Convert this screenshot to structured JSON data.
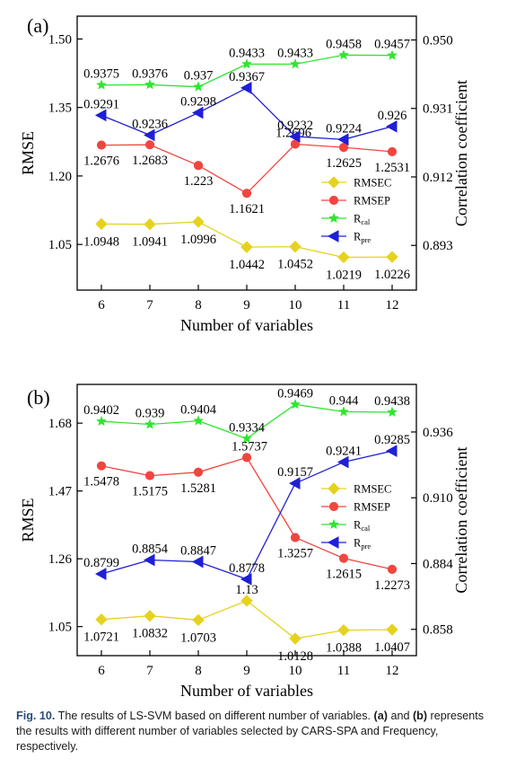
{
  "chart_data": [
    {
      "panel_label": "(a)",
      "type": "line",
      "xlabel": "Number of variables",
      "ylabel": "RMSE",
      "y2label": "Correlation coefficient",
      "x": [
        6,
        7,
        8,
        9,
        10,
        11,
        12
      ],
      "xticks": [
        "6",
        "7",
        "8",
        "9",
        "10",
        "11",
        "12"
      ],
      "xlim": [
        5.5,
        12.5
      ],
      "ylim": [
        0.95,
        1.55
      ],
      "yticks": [
        "1.05",
        "1.20",
        "1.35",
        "1.50"
      ],
      "y2lim": [
        0.8806,
        0.9566
      ],
      "y2ticks": [
        "0.893",
        "0.912",
        "0.931",
        "0.950"
      ],
      "legend_position": "right",
      "series": [
        {
          "key": "rmsec",
          "name": "RMSEC",
          "axis": "left",
          "color": "#e6d21e",
          "marker": "diamond",
          "values": [
            1.0948,
            1.0941,
            1.0996,
            1.0442,
            1.0452,
            1.0219,
            1.0226
          ],
          "labels": [
            "1.0948",
            "1.0941",
            "1.0996",
            "1.0442",
            "1.0452",
            "1.0219",
            "1.0226"
          ]
        },
        {
          "key": "rmsep",
          "name": "RMSEP",
          "axis": "left",
          "color": "#f0463f",
          "marker": "circle",
          "values": [
            1.2676,
            1.2683,
            1.223,
            1.1621,
            1.2696,
            1.2625,
            1.2531
          ],
          "labels": [
            "1.2676",
            "1.2683",
            "1.223",
            "1.1621",
            "1.2696",
            "1.2625",
            "1.2531"
          ]
        },
        {
          "key": "rcal",
          "name": "R",
          "sub": "cal",
          "axis": "right",
          "color": "#2ee62e",
          "marker": "star",
          "values": [
            0.9375,
            0.9376,
            0.937,
            0.9433,
            0.9433,
            0.9458,
            0.9457
          ],
          "labels": [
            "0.9375",
            "0.9376",
            "0.937",
            "0.9433",
            "0.9433",
            "0.9458",
            "0.9457"
          ]
        },
        {
          "key": "rpre",
          "name": "R",
          "sub": "pre",
          "axis": "right",
          "color": "#1f1fd6",
          "marker": "triangle-left",
          "values": [
            0.9291,
            0.9236,
            0.9298,
            0.9367,
            0.9232,
            0.9224,
            0.926
          ],
          "labels": [
            "0.9291",
            "0.9236",
            "0.9298",
            "0.9367",
            "0.9232",
            "0.9224",
            "0.926"
          ]
        }
      ]
    },
    {
      "panel_label": "(b)",
      "type": "line",
      "xlabel": "Number of variables",
      "ylabel": "RMSE",
      "y2label": "Correlation coefficient",
      "x": [
        6,
        7,
        8,
        9,
        10,
        11,
        12
      ],
      "xticks": [
        "6",
        "7",
        "8",
        "9",
        "10",
        "11",
        "12"
      ],
      "xlim": [
        5.5,
        12.5
      ],
      "ylim": [
        0.96,
        1.8
      ],
      "yticks": [
        "1.05",
        "1.26",
        "1.47",
        "1.68"
      ],
      "y2lim": [
        0.8476,
        0.9548
      ],
      "y2ticks": [
        "0.858",
        "0.884",
        "0.910",
        "0.936"
      ],
      "legend_position": "right",
      "series": [
        {
          "key": "rmsec",
          "name": "RMSEC",
          "axis": "left",
          "color": "#e6d21e",
          "marker": "diamond",
          "values": [
            1.0721,
            1.0832,
            1.0703,
            1.13,
            1.0128,
            1.0388,
            1.0407
          ],
          "labels": [
            "1.0721",
            "1.0832",
            "1.0703",
            "1.13",
            "1.0128",
            "1.0388",
            "1.0407"
          ]
        },
        {
          "key": "rmsep",
          "name": "RMSEP",
          "axis": "left",
          "color": "#f0463f",
          "marker": "circle",
          "values": [
            1.5478,
            1.5175,
            1.5281,
            1.5737,
            1.3257,
            1.2615,
            1.2273
          ],
          "labels": [
            "1.5478",
            "1.5175",
            "1.5281",
            "1.5737",
            "1.3257",
            "1.2615",
            "1.2273"
          ]
        },
        {
          "key": "rcal",
          "name": "R",
          "sub": "cal",
          "axis": "right",
          "color": "#2ee62e",
          "marker": "star",
          "values": [
            0.9402,
            0.939,
            0.9404,
            0.9334,
            0.9469,
            0.944,
            0.9438
          ],
          "labels": [
            "0.9402",
            "0.939",
            "0.9404",
            "0.9334",
            "0.9469",
            "0.944",
            "0.9438"
          ]
        },
        {
          "key": "rpre",
          "name": "R",
          "sub": "pre",
          "axis": "right",
          "color": "#1f1fd6",
          "marker": "triangle-left",
          "values": [
            0.8799,
            0.8854,
            0.8847,
            0.8778,
            0.9157,
            0.9241,
            0.9285
          ],
          "labels": [
            "0.8799",
            "0.8854",
            "0.8847",
            "0.8778",
            "0.9157",
            "0.9241",
            "0.9285"
          ]
        }
      ]
    }
  ],
  "caption": {
    "label": "Fig. 10.",
    "part1": " The results of LS-SVM based on different number of variables. ",
    "a": "(a)",
    "mid": " and ",
    "b": "(b)",
    "part2": " represents the results with different number of variables selected by CARS-SPA and Frequency, respectively."
  }
}
